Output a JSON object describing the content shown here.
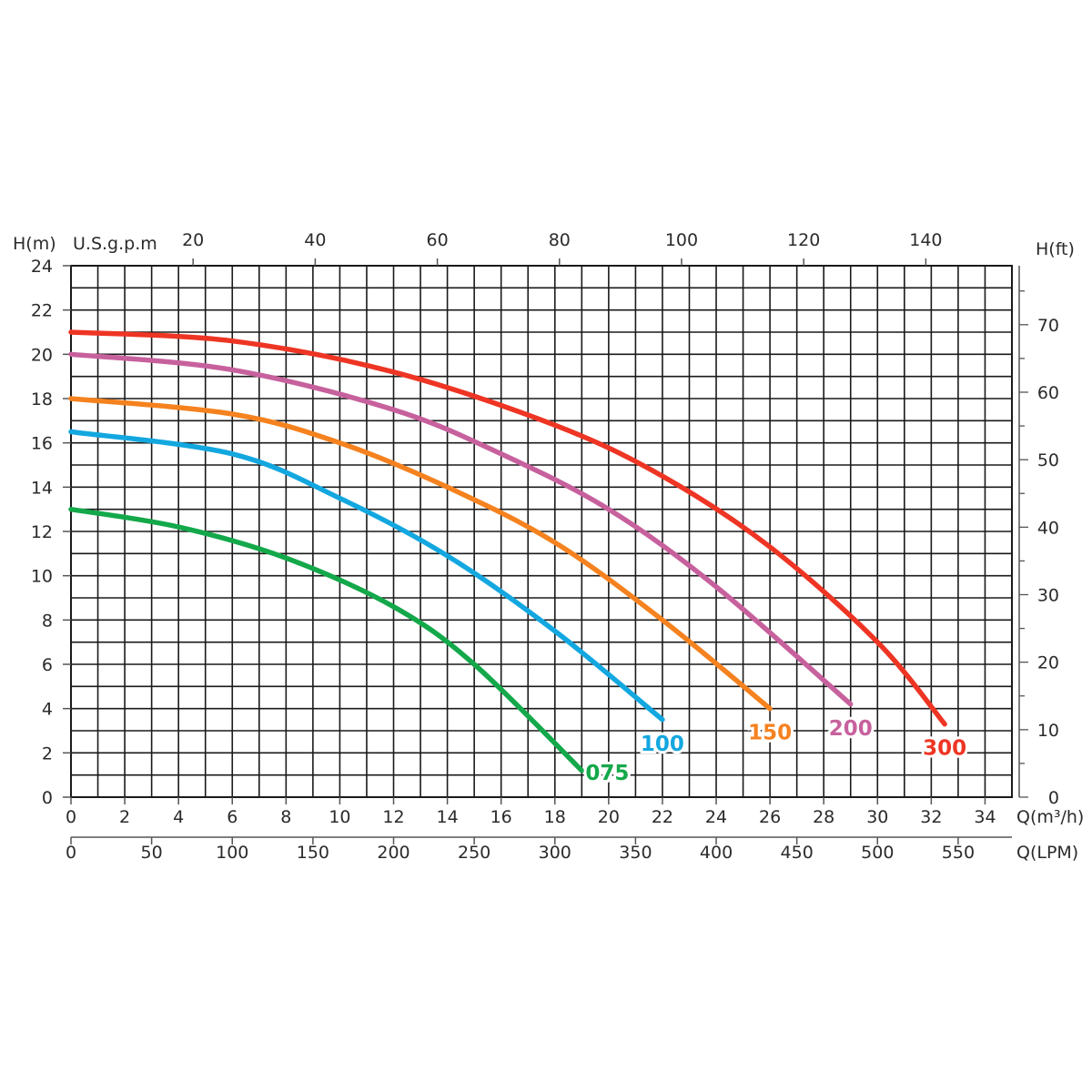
{
  "chart_data": {
    "type": "line",
    "y_left_label": "H(m)",
    "y_right_label": "H(ft)",
    "x_top_label": "U.S.g.p.m",
    "x_bottom_label": "Q(m³/h)",
    "x_bottom2_label": "Q(LPM)",
    "xlim": [
      0,
      35
    ],
    "ylim": [
      0,
      24
    ],
    "grid": true,
    "x_ticks": [
      "0",
      "2",
      "4",
      "6",
      "8",
      "10",
      "12",
      "14",
      "16",
      "18",
      "20",
      "22",
      "24",
      "26",
      "28",
      "30",
      "32",
      "34"
    ],
    "y_ticks": [
      "0",
      "2",
      "4",
      "6",
      "8",
      "10",
      "12",
      "14",
      "16",
      "18",
      "20",
      "22",
      "24"
    ],
    "lpm_ticks": [
      "0",
      "50",
      "100",
      "150",
      "200",
      "250",
      "300",
      "350",
      "400",
      "450",
      "500",
      "550"
    ],
    "gpm_ticks": [
      "20",
      "40",
      "60",
      "80",
      "100",
      "120",
      "140"
    ],
    "ft_ticks": [
      "0",
      "10",
      "20",
      "30",
      "40",
      "50",
      "60",
      "70"
    ],
    "series": [
      {
        "name": "075",
        "color": "#13a84a",
        "x": [
          0,
          4,
          8,
          12,
          15,
          19
        ],
        "y": [
          13,
          12.2,
          10.8,
          8.6,
          6,
          1.2
        ]
      },
      {
        "name": "100",
        "color": "#13a7e0",
        "x": [
          0,
          6,
          10,
          14,
          18,
          22
        ],
        "y": [
          16.5,
          15.5,
          13.5,
          10.9,
          7.5,
          3.5
        ]
      },
      {
        "name": "150",
        "color": "#f5821f",
        "x": [
          0,
          6,
          10,
          14,
          18,
          22,
          26
        ],
        "y": [
          18,
          17.3,
          16,
          14,
          11.5,
          8,
          4
        ]
      },
      {
        "name": "200",
        "color": "#c7619d",
        "x": [
          0,
          6,
          12,
          16,
          20,
          24,
          29
        ],
        "y": [
          20,
          19.3,
          17.5,
          15.5,
          13,
          9.5,
          4.2
        ]
      },
      {
        "name": "300",
        "color": "#ee3524",
        "x": [
          0,
          6,
          12,
          18,
          22,
          26,
          30,
          32.5
        ],
        "y": [
          21,
          20.6,
          19.2,
          16.8,
          14.5,
          11.3,
          7,
          3.3
        ]
      }
    ]
  }
}
